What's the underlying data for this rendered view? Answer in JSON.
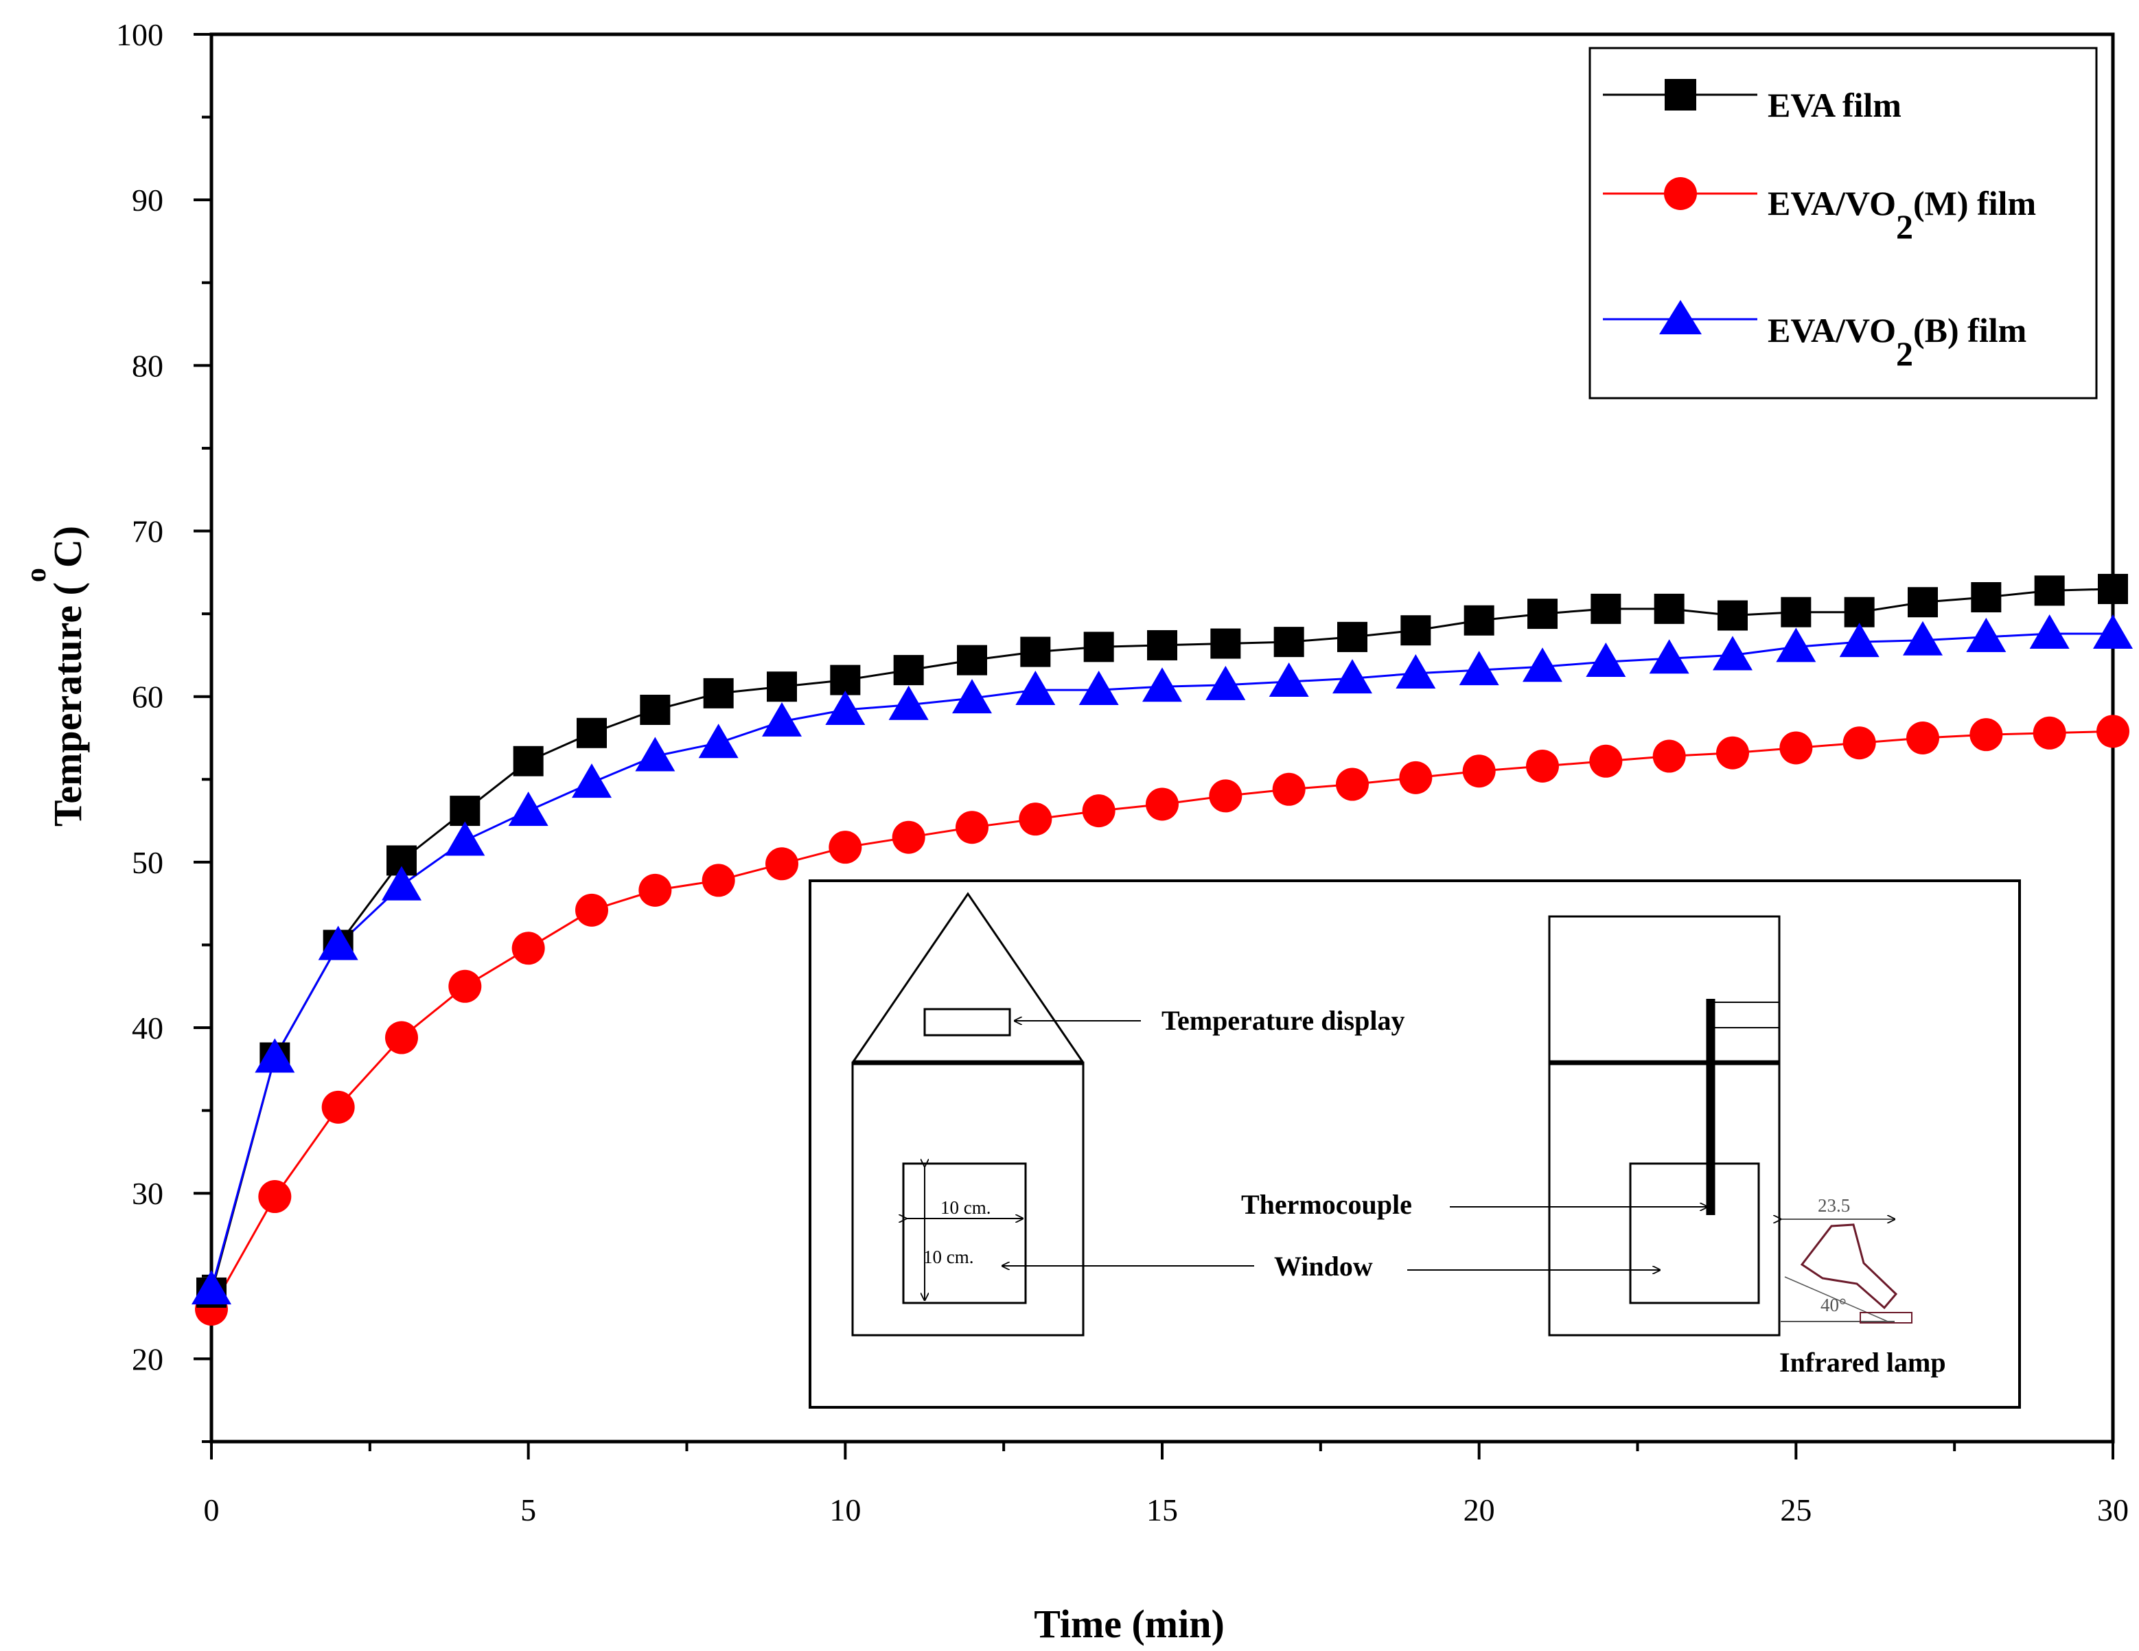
{
  "chart_data": {
    "type": "line",
    "title": "",
    "xlabel": "Time (min)",
    "ylabel": {
      "main": "Temperature (",
      "degree": "o",
      "unit": "C)"
    },
    "xlim": [
      0,
      30
    ],
    "ylim": [
      15,
      100
    ],
    "xticks": [
      0,
      5,
      10,
      15,
      20,
      25,
      30
    ],
    "yticks": [
      20,
      30,
      40,
      50,
      60,
      70,
      80,
      90,
      100
    ],
    "grid": false,
    "legend_position": "top-right",
    "x": [
      0,
      1,
      2,
      3,
      4,
      5,
      6,
      7,
      8,
      9,
      10,
      11,
      12,
      13,
      14,
      15,
      16,
      17,
      18,
      19,
      20,
      21,
      22,
      23,
      24,
      25,
      26,
      27,
      28,
      29,
      30
    ],
    "series": [
      {
        "name": "EVA film",
        "legend": {
          "pre": "EVA film",
          "sub": "",
          "post": ""
        },
        "color": "#000000",
        "marker": "square",
        "values": [
          24.0,
          38.2,
          45.0,
          50.1,
          53.1,
          56.1,
          57.8,
          59.2,
          60.2,
          60.6,
          61.0,
          61.6,
          62.2,
          62.7,
          63.0,
          63.1,
          63.2,
          63.3,
          63.6,
          64.0,
          64.6,
          65.0,
          65.3,
          65.3,
          64.9,
          65.1,
          65.1,
          65.7,
          66.0,
          66.4,
          66.5
        ]
      },
      {
        "name": "EVA/VO2(M) film",
        "legend": {
          "pre": "EVA/VO",
          "sub": "2",
          "post": "(M) film"
        },
        "color": "#ff0000",
        "marker": "circle",
        "values": [
          23.0,
          29.8,
          35.2,
          39.4,
          42.5,
          44.8,
          47.1,
          48.3,
          48.9,
          49.9,
          50.9,
          51.5,
          52.1,
          52.6,
          53.1,
          53.5,
          54.0,
          54.4,
          54.7,
          55.1,
          55.5,
          55.8,
          56.1,
          56.4,
          56.6,
          56.9,
          57.2,
          57.5,
          57.7,
          57.8,
          57.9
        ]
      },
      {
        "name": "EVA/VO2(B) film",
        "legend": {
          "pre": "EVA/VO",
          "sub": "2",
          "post": "(B) film"
        },
        "color": "#0000ff",
        "marker": "triangle",
        "values": [
          24.2,
          38.2,
          45.0,
          48.6,
          51.3,
          53.1,
          54.8,
          56.4,
          57.2,
          58.5,
          59.2,
          59.5,
          59.9,
          60.4,
          60.4,
          60.6,
          60.7,
          60.9,
          61.1,
          61.4,
          61.6,
          61.8,
          62.1,
          62.3,
          62.5,
          63.0,
          63.3,
          63.4,
          63.6,
          63.8,
          63.8
        ]
      }
    ],
    "inset": {
      "temperature_display": "Temperature display",
      "thermocouple": "Thermocouple",
      "window": "Window",
      "infrared_lamp": "Infrared lamp",
      "dim_width": "10 cm.",
      "dim_height": "10 cm.",
      "lamp_length": "23.5",
      "lamp_angle": "40°"
    }
  }
}
